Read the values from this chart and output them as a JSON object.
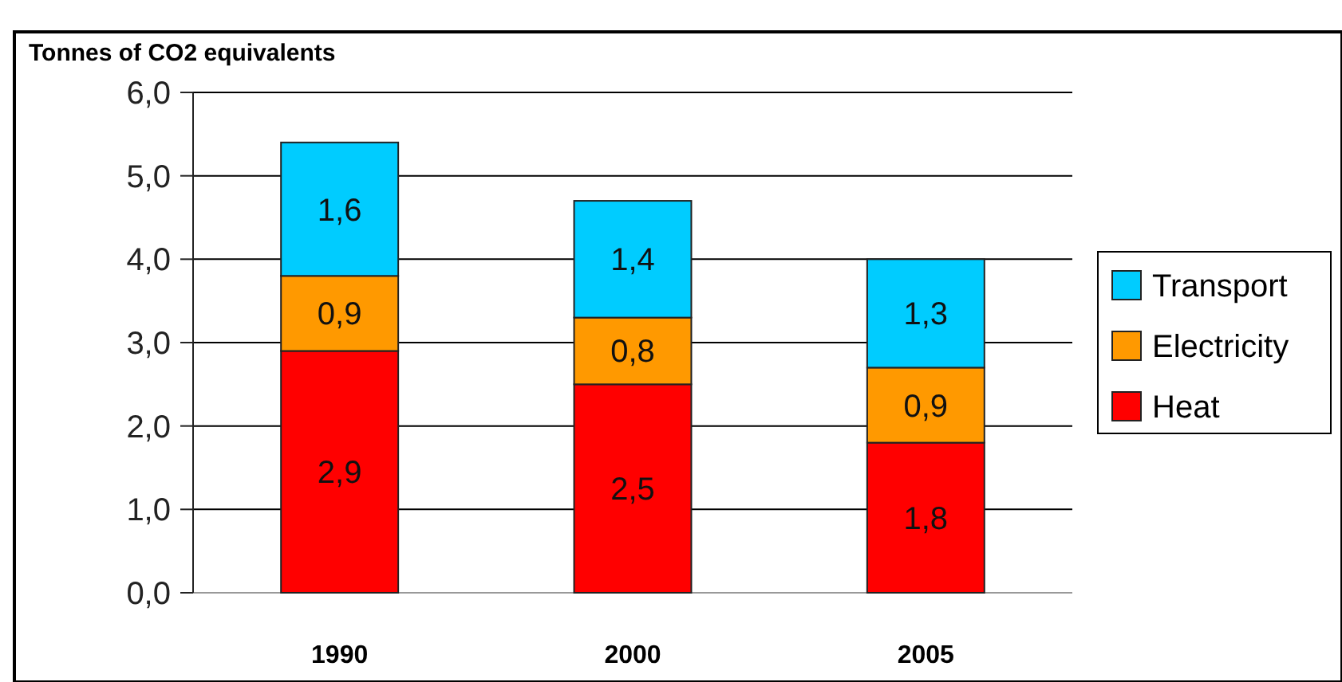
{
  "chart_data": {
    "type": "bar",
    "stacked": true,
    "ylabel": "Tonnes of CO2 equivalents",
    "categories": [
      "1990",
      "2000",
      "2005"
    ],
    "series": [
      {
        "name": "Heat",
        "color": "#ff0000",
        "values": [
          2.9,
          2.5,
          1.8
        ],
        "value_labels": [
          "2,9",
          "2,5",
          "1,8"
        ]
      },
      {
        "name": "Electricity",
        "color": "#ff9900",
        "values": [
          0.9,
          0.8,
          0.9
        ],
        "value_labels": [
          "0,9",
          "0,8",
          "0,9"
        ]
      },
      {
        "name": "Transport",
        "color": "#00ccff",
        "values": [
          1.6,
          1.4,
          1.3
        ],
        "value_labels": [
          "1,6",
          "1,4",
          "1,3"
        ]
      }
    ],
    "ylim": [
      0,
      6
    ],
    "yticks": [
      {
        "value": 0,
        "label": "0,0"
      },
      {
        "value": 1,
        "label": "1,0"
      },
      {
        "value": 2,
        "label": "2,0"
      },
      {
        "value": 3,
        "label": "3,0"
      },
      {
        "value": 4,
        "label": "4,0"
      },
      {
        "value": 5,
        "label": "5,0"
      },
      {
        "value": 6,
        "label": "6,0"
      }
    ],
    "grid": "y",
    "legend": "right"
  }
}
